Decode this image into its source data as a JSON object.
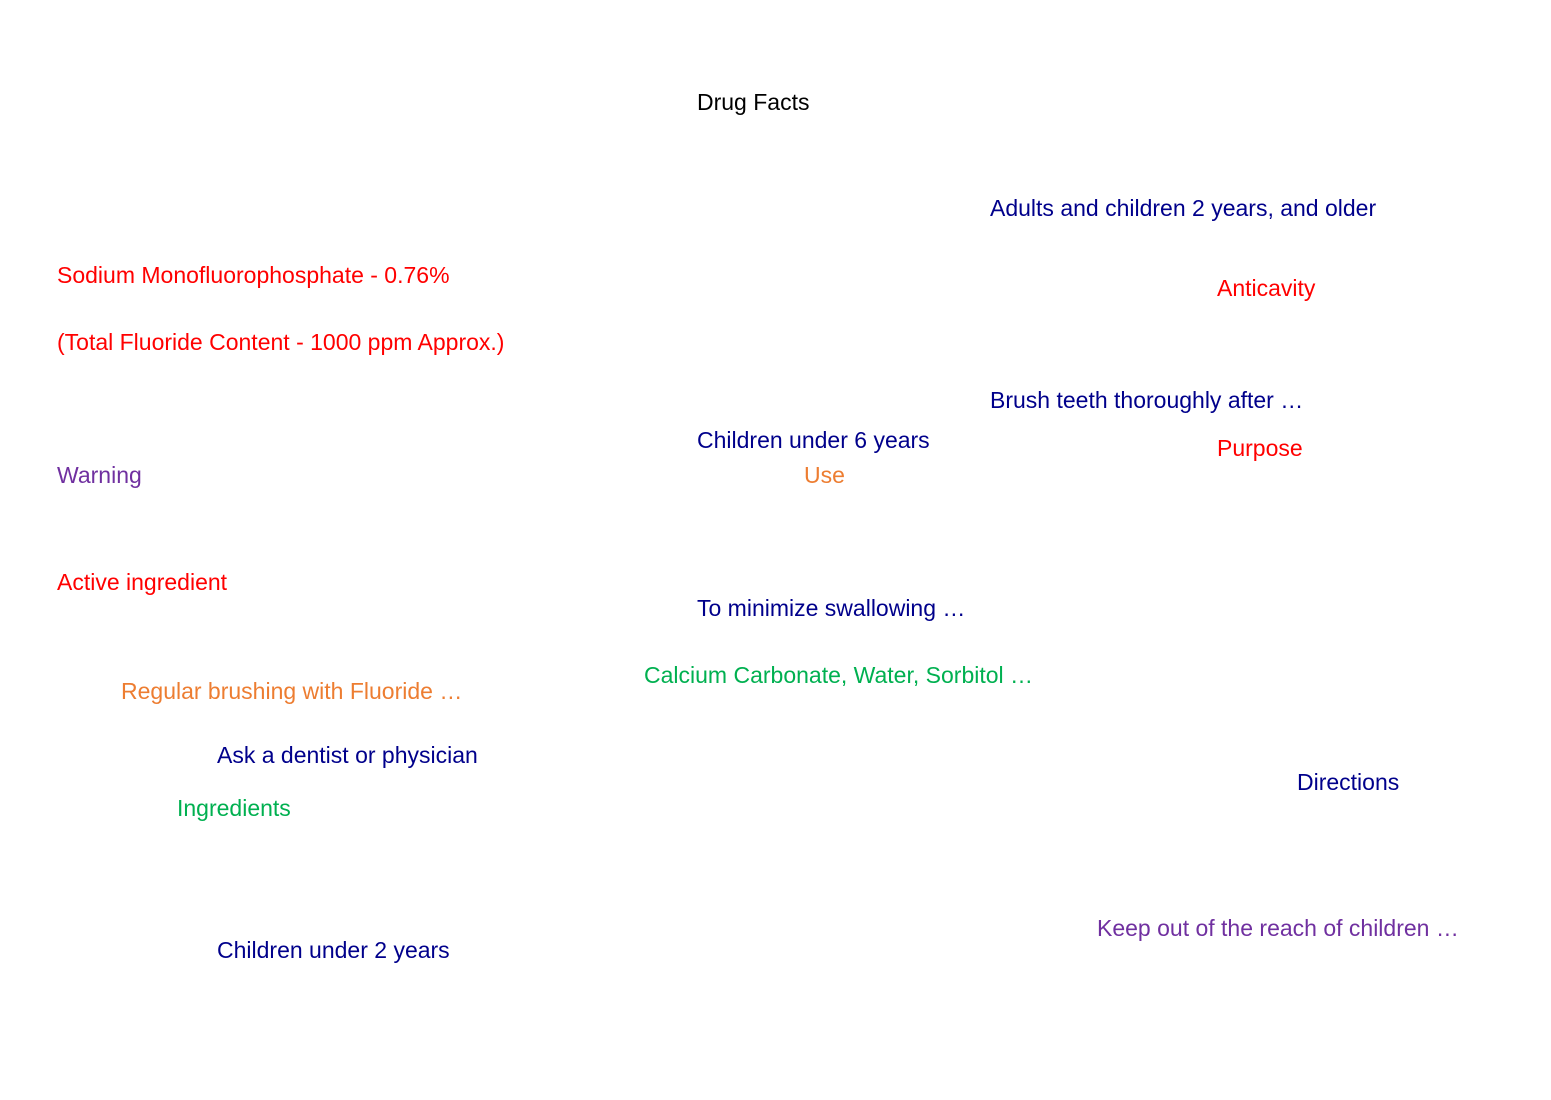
{
  "colors": {
    "black": "#000000",
    "navy": "#00008b",
    "red": "#ff0000",
    "purple": "#7030a0",
    "orange": "#ed7d31",
    "green": "#00b050"
  },
  "labels": {
    "title": "Drug Facts",
    "adults": "Adults and children 2 years, and older",
    "sodium": "Sodium Monofluorophosphate - 0.76%",
    "anticavity": "Anticavity",
    "total_fluoride": "(Total Fluoride Content - 1000 ppm Approx.)",
    "brush": "Brush teeth thoroughly after …",
    "children_under_6": "Children under 6 years",
    "purpose": "Purpose",
    "warning": "Warning",
    "use": "Use",
    "active_ingredient": "Active ingredient",
    "minimize": "To minimize swallowing …",
    "calcium": "Calcium Carbonate, Water, Sorbitol …",
    "regular": "Regular brushing with Fluoride …",
    "ask": "Ask a dentist or physician",
    "directions": "Directions",
    "ingredients": "Ingredients",
    "keep_out": "Keep out of the reach of children …",
    "children_under_2": "Children under 2 years"
  }
}
